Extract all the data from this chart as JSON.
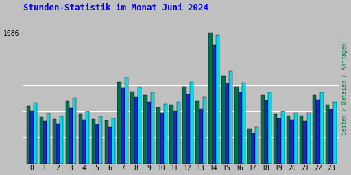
{
  "title": "Stunden-Statistik im Monat Juni 2024",
  "ylabel_right": "Seiten / Dateien / Anfragen",
  "background_color": "#c0c0c0",
  "plot_bg_color": "#c0c0c0",
  "title_color": "#0000ff",
  "ylabel_color": "#008040",
  "bar_colors": [
    "#007050",
    "#2222cc",
    "#00ddee"
  ],
  "hours": [
    0,
    1,
    2,
    3,
    4,
    5,
    6,
    7,
    8,
    9,
    10,
    11,
    12,
    13,
    14,
    15,
    16,
    17,
    18,
    19,
    20,
    21,
    22,
    23
  ],
  "green": [
    480,
    390,
    370,
    520,
    410,
    370,
    360,
    680,
    600,
    570,
    470,
    490,
    640,
    520,
    1086,
    730,
    640,
    290,
    570,
    410,
    400,
    400,
    570,
    490
  ],
  "blue": [
    440,
    355,
    335,
    460,
    365,
    325,
    305,
    625,
    555,
    515,
    425,
    440,
    575,
    455,
    985,
    665,
    590,
    255,
    525,
    375,
    365,
    355,
    530,
    450
  ],
  "cyan": [
    510,
    415,
    395,
    545,
    435,
    395,
    375,
    715,
    635,
    595,
    495,
    515,
    675,
    555,
    1070,
    770,
    670,
    305,
    595,
    435,
    425,
    425,
    595,
    515
  ]
}
